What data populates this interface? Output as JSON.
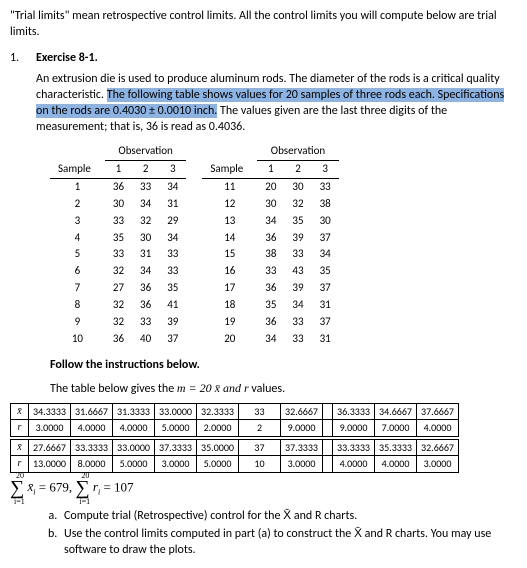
{
  "intro": "\"Trial limits\" mean retrospective control limits. All the control limits you will compute below are trial limits.",
  "exercise_num": "1.",
  "exercise_title": "Exercise 8-1.",
  "para1_a": "An extrusion die is used to produce aluminum rods. The diameter of the rods is a critical quality characteristic. ",
  "para1_hl": "The following table shows values for 20 samples of three rods each. Specifications on the rods are 0.4030 ± 0.0010 inch.",
  "para1_c": " The values given are the last three digits of the measurement; that is, 36 is read as 0.4036.",
  "obs_header": "Observation",
  "sample_header": "Sample",
  "cols": [
    "1",
    "2",
    "3"
  ],
  "obs_left": [
    [
      "1",
      "36",
      "33",
      "34"
    ],
    [
      "2",
      "30",
      "34",
      "31"
    ],
    [
      "3",
      "33",
      "32",
      "29"
    ],
    [
      "4",
      "35",
      "30",
      "34"
    ],
    [
      "5",
      "33",
      "31",
      "33"
    ],
    [
      "6",
      "32",
      "34",
      "33"
    ],
    [
      "7",
      "27",
      "36",
      "35"
    ],
    [
      "8",
      "32",
      "36",
      "41"
    ],
    [
      "9",
      "32",
      "33",
      "39"
    ],
    [
      "10",
      "36",
      "40",
      "37"
    ]
  ],
  "obs_right": [
    [
      "11",
      "20",
      "30",
      "33"
    ],
    [
      "12",
      "30",
      "32",
      "38"
    ],
    [
      "13",
      "34",
      "35",
      "30"
    ],
    [
      "14",
      "36",
      "39",
      "37"
    ],
    [
      "15",
      "38",
      "33",
      "34"
    ],
    [
      "16",
      "33",
      "43",
      "35"
    ],
    [
      "17",
      "36",
      "39",
      "37"
    ],
    [
      "18",
      "35",
      "34",
      "31"
    ],
    [
      "19",
      "36",
      "33",
      "37"
    ],
    [
      "20",
      "34",
      "33",
      "31"
    ]
  ],
  "instr1": "Follow the instructions below.",
  "instr2a": "The table below gives the ",
  "instr2b": " values.",
  "m_text": "m = 20  x̄ and r",
  "data1_xbar": [
    "34.3333",
    "31.6667",
    "31.3333",
    "33.0000",
    "32.3333",
    "33",
    "32.6667",
    "",
    "36.3333",
    "34.6667",
    "37.6667"
  ],
  "data1_r": [
    "3.0000",
    "4.0000",
    "4.0000",
    "5.0000",
    "2.0000",
    "2",
    "9.0000",
    "",
    "9.0000",
    "7.0000",
    "4.0000"
  ],
  "data2_xbar": [
    "27.6667",
    "33.3333",
    "33.0000",
    "37.3333",
    "35.0000",
    "37",
    "37.3333",
    "",
    "33.3333",
    "35.3333",
    "32.6667"
  ],
  "data2_r": [
    "13.0000",
    "8.0000",
    "5.0000",
    "3.0000",
    "5.0000",
    "10",
    "3.0000",
    "",
    "4.0000",
    "4.0000",
    "3.0000"
  ],
  "sigma_text": "= 679,",
  "sigma_text2": "= 107",
  "q_a": "Compute trial (Retrospective) control for the X̄ and R charts.",
  "q_b": "Use the control limits computed in part (a) to construct the X̄ and R charts. You may use software to draw the plots."
}
